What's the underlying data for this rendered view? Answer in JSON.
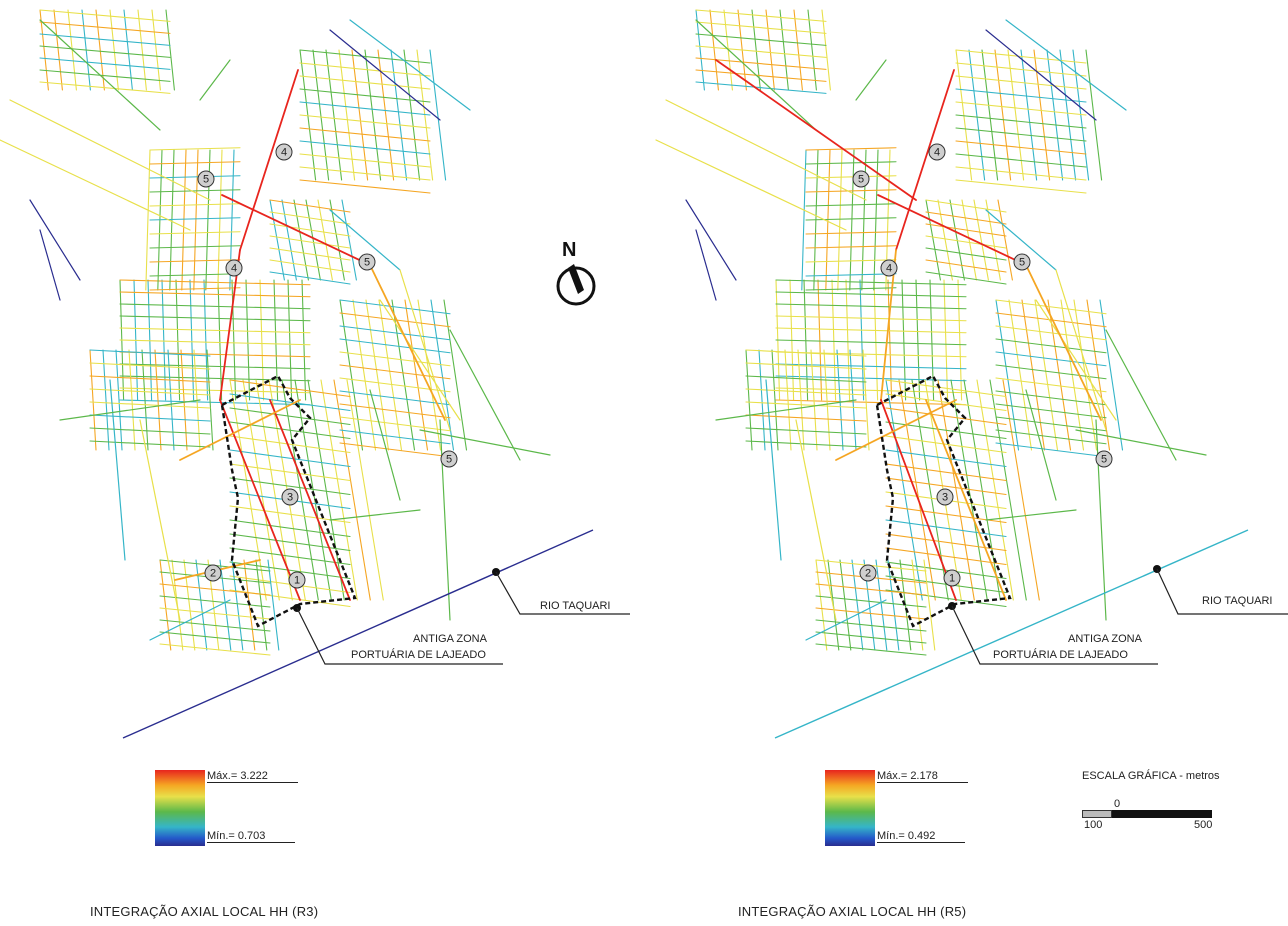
{
  "north": {
    "label": "N"
  },
  "river_label": "RIO TAQUARI",
  "port_label_line1": "ANTIGA ZONA",
  "port_label_line2": "PORTUÁRIA DE LAJEADO",
  "panels": [
    {
      "title": "INTEGRAÇÃO AXIAL LOCAL HH (R3)",
      "legend_max": "Máx.= 3.222",
      "legend_min": "Mín.= 0.703",
      "river_color": "#2a2d8f"
    },
    {
      "title": "INTEGRAÇÃO AXIAL LOCAL HH (R5)",
      "legend_max": "Máx.= 2.178",
      "legend_min": "Mín.= 0.492",
      "river_color": "#35b5c8"
    }
  ],
  "markers": [
    "1",
    "2",
    "3",
    "4",
    "4",
    "5",
    "5",
    "5"
  ],
  "scale": {
    "title": "ESCALA GRÁFICA - metros",
    "zero": "0",
    "left": "100",
    "right": "500"
  },
  "colors": {
    "max": "#e8251e",
    "high": "#f5a623",
    "mid_high": "#e8e04a",
    "mid": "#5cb84a",
    "low": "#35b5c8",
    "min": "#2a2d8f"
  }
}
